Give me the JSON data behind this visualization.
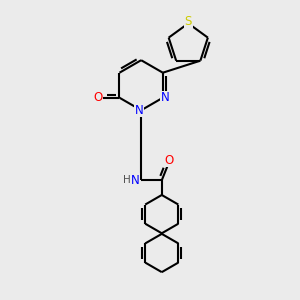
{
  "bg_color": "#ebebeb",
  "atom_colors": {
    "N": "#0000ff",
    "O": "#ff0000",
    "S": "#cccc00",
    "NH": "#008080",
    "C": "#000000"
  },
  "lw": 1.5,
  "fontsize": 8.5
}
